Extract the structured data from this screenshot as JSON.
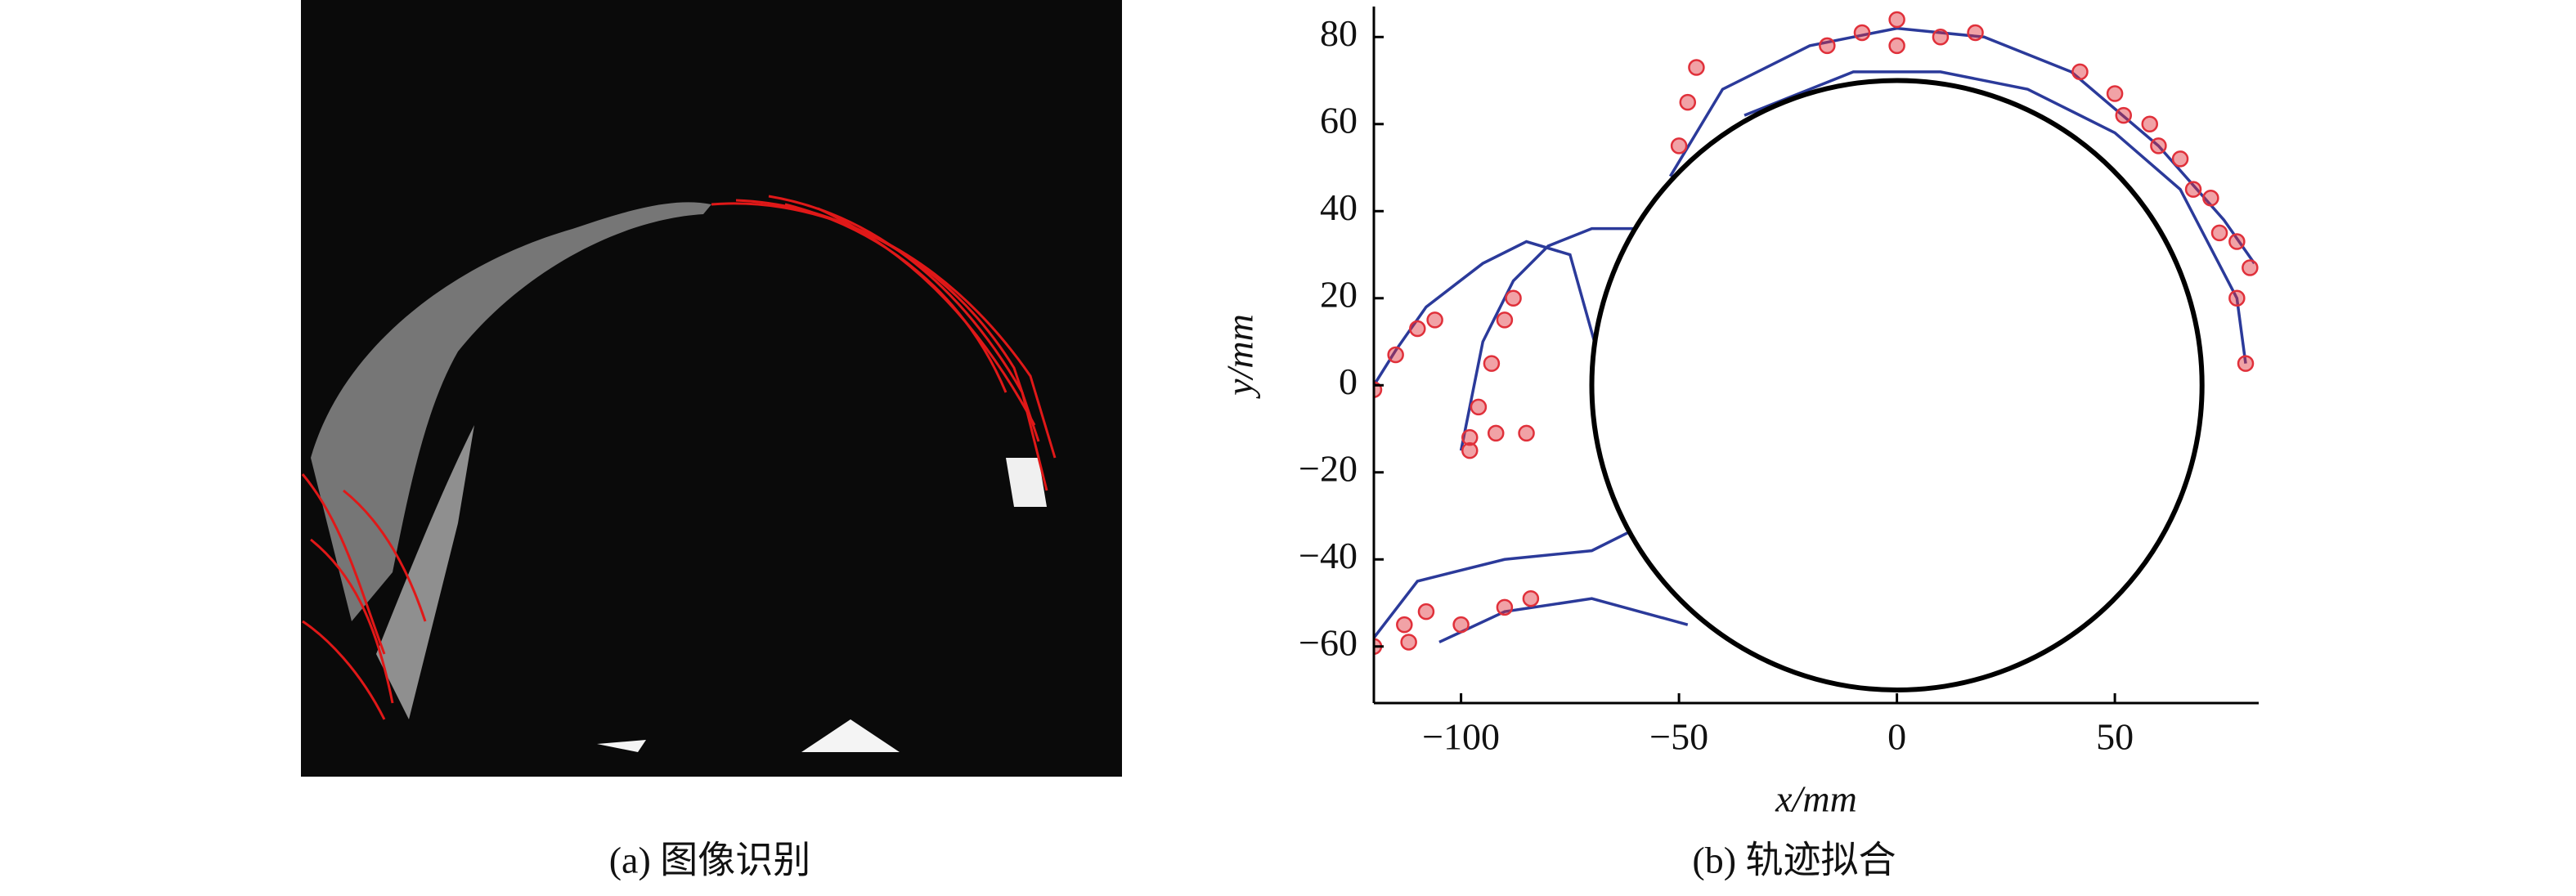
{
  "image_caption": "(a) 图像识别",
  "chart_data": {
    "type": "trajectory",
    "caption": "(b) 轨迹拟合",
    "xlabel": "x/mm",
    "ylabel": "y/mm",
    "xlim": [
      -120,
      83
    ],
    "ylim": [
      -73,
      87
    ],
    "xticks": [
      {
        "value": -100,
        "label": "−100"
      },
      {
        "value": -50,
        "label": "−50"
      },
      0,
      50
    ],
    "yticks": [
      {
        "value": -60,
        "label": "−60"
      },
      {
        "value": -40,
        "label": "−40"
      },
      {
        "value": -20,
        "label": "−20"
      },
      0,
      20,
      40,
      60,
      80
    ],
    "circle": {
      "center": [
        0,
        0
      ],
      "radius": 70,
      "color": "#000000"
    },
    "fits": [
      {
        "color": "#2b3a9a",
        "x": [
          -52,
          -40,
          -20,
          0,
          20,
          40,
          60,
          75,
          82
        ],
        "y": [
          48,
          68,
          78,
          82,
          80,
          72,
          55,
          38,
          28
        ]
      },
      {
        "color": "#2b3a9a",
        "x": [
          -35,
          -10,
          10,
          30,
          50,
          65,
          78,
          80
        ],
        "y": [
          62,
          72,
          72,
          68,
          58,
          45,
          20,
          5
        ]
      },
      {
        "color": "#2b3a9a",
        "x": [
          -60,
          -70,
          -80,
          -88,
          -95,
          -100
        ],
        "y": [
          36,
          36,
          32,
          24,
          10,
          -15
        ]
      },
      {
        "color": "#2b3a9a",
        "x": [
          -68,
          -75,
          -85,
          -95,
          -108,
          -115,
          -120
        ],
        "y": [
          5,
          30,
          33,
          28,
          18,
          8,
          0
        ]
      },
      {
        "color": "#2b3a9a",
        "x": [
          -58,
          -70,
          -90,
          -110,
          -120
        ],
        "y": [
          -32,
          -38,
          -40,
          -45,
          -58
        ]
      },
      {
        "color": "#2b3a9a",
        "x": [
          -48,
          -70,
          -90,
          -105
        ],
        "y": [
          -55,
          -49,
          -52,
          -59
        ]
      }
    ],
    "points": [
      {
        "color": "#e0303a",
        "x": [
          42,
          50,
          58,
          65,
          72,
          78,
          81
        ],
        "y": [
          72,
          67,
          60,
          52,
          43,
          33,
          27
        ]
      },
      {
        "color": "#e0303a",
        "x": [
          52,
          60,
          68,
          74,
          78,
          80
        ],
        "y": [
          62,
          55,
          45,
          35,
          20,
          5
        ]
      },
      {
        "color": "#e0303a",
        "x": [
          -16,
          -8,
          0
        ],
        "y": [
          78,
          81,
          84
        ]
      },
      {
        "color": "#e0303a",
        "x": [
          0,
          10,
          18
        ],
        "y": [
          78,
          80,
          81
        ]
      },
      {
        "color": "#e0303a",
        "x": [
          -50,
          -48,
          -46
        ],
        "y": [
          55,
          65,
          73
        ]
      },
      {
        "color": "#e0303a",
        "x": [
          -120,
          -115,
          -110,
          -106
        ],
        "y": [
          -1,
          7,
          13,
          15
        ]
      },
      {
        "color": "#e0303a",
        "x": [
          -98,
          -96,
          -93,
          -90,
          -88
        ],
        "y": [
          -15,
          -5,
          5,
          15,
          20
        ]
      },
      {
        "color": "#e0303a",
        "x": [
          -98,
          -92,
          -85
        ],
        "y": [
          -12,
          -11,
          -11
        ]
      },
      {
        "color": "#e0303a",
        "x": [
          -120,
          -113,
          -108
        ],
        "y": [
          -60,
          -55,
          -52
        ]
      },
      {
        "color": "#e0303a",
        "x": [
          -112,
          -100,
          -90,
          -84
        ],
        "y": [
          -59,
          -55,
          -51,
          -49
        ]
      }
    ]
  }
}
